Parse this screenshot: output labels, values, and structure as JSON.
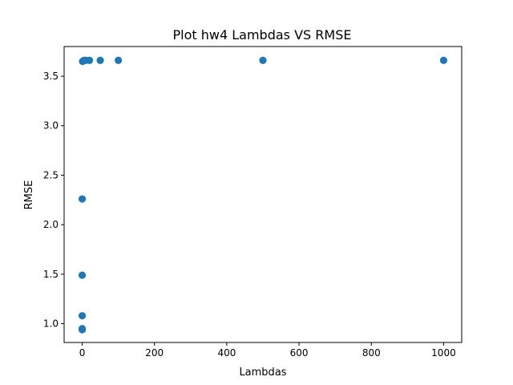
{
  "chart_data": {
    "type": "scatter",
    "title": "Plot hw4 Lambdas VS RMSE",
    "xlabel": "Lambdas",
    "ylabel": "RMSE",
    "xlim": [
      -50,
      1050
    ],
    "ylim": [
      0.81,
      3.8
    ],
    "xticks": [
      0,
      200,
      400,
      600,
      800,
      1000
    ],
    "yticks": [
      1.0,
      1.5,
      2.0,
      2.5,
      3.0,
      3.5
    ],
    "ytick_labels": [
      "1.0",
      "1.5",
      "2.0",
      "2.5",
      "3.0",
      "3.5"
    ],
    "grid": false,
    "color": "#1f77b4",
    "points": [
      {
        "x": 0,
        "y": 0.94
      },
      {
        "x": 0,
        "y": 0.95
      },
      {
        "x": 0,
        "y": 1.08
      },
      {
        "x": 0,
        "y": 1.49
      },
      {
        "x": 0,
        "y": 2.26
      },
      {
        "x": 1,
        "y": 3.65
      },
      {
        "x": 5,
        "y": 3.66
      },
      {
        "x": 10,
        "y": 3.66
      },
      {
        "x": 20,
        "y": 3.66
      },
      {
        "x": 50,
        "y": 3.66
      },
      {
        "x": 100,
        "y": 3.66
      },
      {
        "x": 500,
        "y": 3.66
      },
      {
        "x": 1000,
        "y": 3.66
      }
    ]
  }
}
